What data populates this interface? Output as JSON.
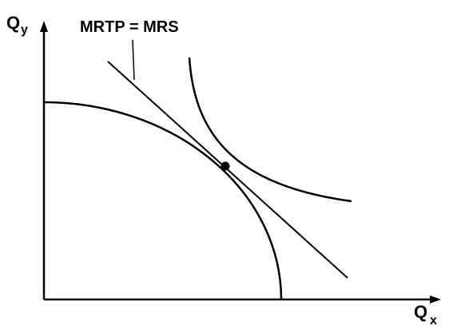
{
  "axes": {
    "y": {
      "label": "Q",
      "subscript": "y"
    },
    "x": {
      "label": "Q",
      "subscript": "x"
    }
  },
  "annotation": "MRTP = MRS"
}
